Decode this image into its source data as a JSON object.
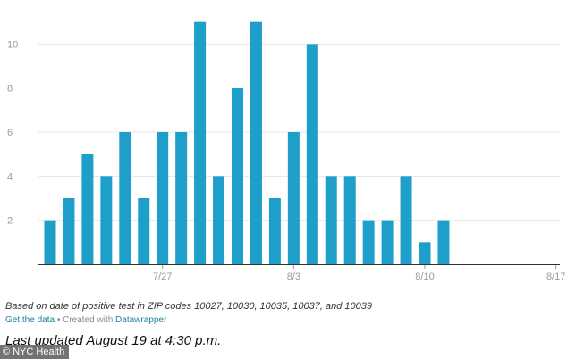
{
  "chart_data": {
    "type": "bar",
    "x": [
      "7/21",
      "7/22",
      "7/23",
      "7/24",
      "7/25",
      "7/26",
      "7/27",
      "7/28",
      "7/29",
      "7/30",
      "7/31",
      "8/1",
      "8/2",
      "8/3",
      "8/4",
      "8/5",
      "8/6",
      "8/7",
      "8/8",
      "8/9",
      "8/10",
      "8/11",
      "8/12",
      "8/13",
      "8/14",
      "8/15",
      "8/16",
      "8/17",
      "8/18",
      "8/19"
    ],
    "values": [
      2,
      3,
      5,
      4,
      6,
      3,
      6,
      6,
      11,
      4,
      8,
      11,
      3,
      6,
      10,
      4,
      4,
      2,
      2,
      4,
      1,
      2,
      null,
      null,
      null,
      null,
      null,
      null,
      null,
      null
    ],
    "xticks": [
      "7/27",
      "8/3",
      "8/10",
      "8/17"
    ],
    "yticks": [
      2,
      4,
      6,
      8,
      10
    ],
    "ylim": [
      0,
      12
    ],
    "grid": true,
    "bar_color": "#1d9fc9",
    "title": "",
    "xlabel": "",
    "ylabel": ""
  },
  "notes": "Based on date of positive test in ZIP codes 10027, 10030, 10035, 10037, and 10039",
  "footer": {
    "get_data": "Get the data",
    "separator": "•",
    "created_with": "Created with",
    "tool": "Datawrapper"
  },
  "updated": "Last updated August 19 at 4:30 p.m.",
  "credit": {
    "symbol": "©",
    "text": "NYC Health"
  }
}
